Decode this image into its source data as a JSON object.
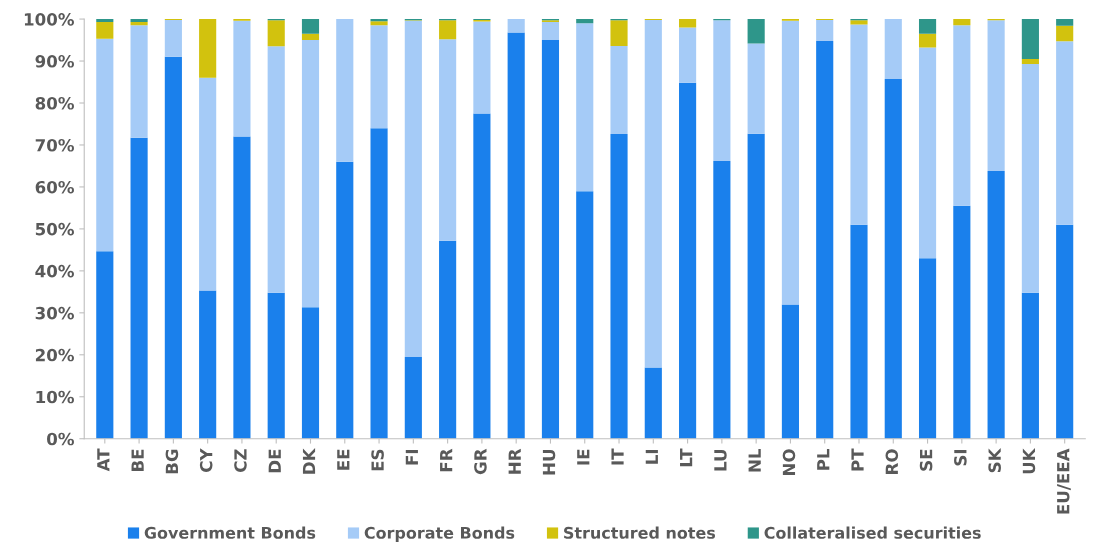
{
  "chart_data": {
    "type": "bar",
    "stacked": true,
    "legend": "bottom",
    "grid": false,
    "categories": [
      "AT",
      "BE",
      "BG",
      "CY",
      "CZ",
      "DE",
      "DK",
      "EE",
      "ES",
      "FI",
      "FR",
      "GR",
      "HR",
      "HU",
      "IE",
      "IT",
      "LI",
      "LT",
      "LU",
      "NL",
      "NO",
      "PL",
      "PT",
      "RO",
      "SE",
      "SI",
      "SK",
      "UK",
      "EU/EEA"
    ],
    "ylim": [
      0,
      100
    ],
    "yticks": [
      {
        "value": 0,
        "label": "0%"
      },
      {
        "value": 10,
        "label": "10%"
      },
      {
        "value": 20,
        "label": "20%"
      },
      {
        "value": 30,
        "label": "30%"
      },
      {
        "value": 40,
        "label": "40%"
      },
      {
        "value": 50,
        "label": "50%"
      },
      {
        "value": 60,
        "label": "60%"
      },
      {
        "value": 70,
        "label": "70%"
      },
      {
        "value": 80,
        "label": "80%"
      },
      {
        "value": 90,
        "label": "90%"
      },
      {
        "value": 100,
        "label": "100%"
      }
    ],
    "series": [
      {
        "name": "Government Bonds",
        "color": "#1a80ec",
        "values": [
          44.7,
          71.7,
          91,
          35.3,
          72,
          34.8,
          31.3,
          66,
          74,
          19.5,
          47.2,
          77.5,
          96.8,
          95,
          59,
          72.6,
          17,
          84.8,
          66.2,
          72.7,
          32,
          94.8,
          51,
          85.7,
          43,
          55.5,
          63.8,
          34.8,
          51
        ]
      },
      {
        "name": "Corporate Bonds",
        "color": "#a5cbf7",
        "values": [
          50.6,
          26.8,
          8.8,
          50.7,
          27.6,
          58.7,
          63.7,
          34,
          24.5,
          80.1,
          48,
          21.9,
          3.2,
          4.3,
          40,
          21,
          82.8,
          13.2,
          33.5,
          21.5,
          67.6,
          5,
          47.7,
          14.3,
          50.2,
          43,
          35.9,
          54.5,
          43.7
        ]
      },
      {
        "name": "Structured notes",
        "color": "#d2c20e",
        "values": [
          4,
          0.8,
          0.2,
          14,
          0.4,
          6.2,
          1.5,
          0,
          1,
          0.1,
          4.5,
          0.4,
          0,
          0.4,
          0,
          6.1,
          0.2,
          2,
          0,
          0,
          0.4,
          0.2,
          1,
          0,
          3.3,
          1.5,
          0.3,
          1.2,
          3.7
        ]
      },
      {
        "name": "Collateralised securities",
        "color": "#2e968a",
        "values": [
          0.7,
          0.7,
          0,
          0,
          0,
          0.3,
          3.5,
          0,
          0.5,
          0.3,
          0.3,
          0.2,
          0,
          0.3,
          1,
          0.3,
          0,
          0,
          0.3,
          5.8,
          0,
          0,
          0.3,
          0,
          3.5,
          0,
          0,
          9.5,
          1.6
        ]
      }
    ]
  }
}
